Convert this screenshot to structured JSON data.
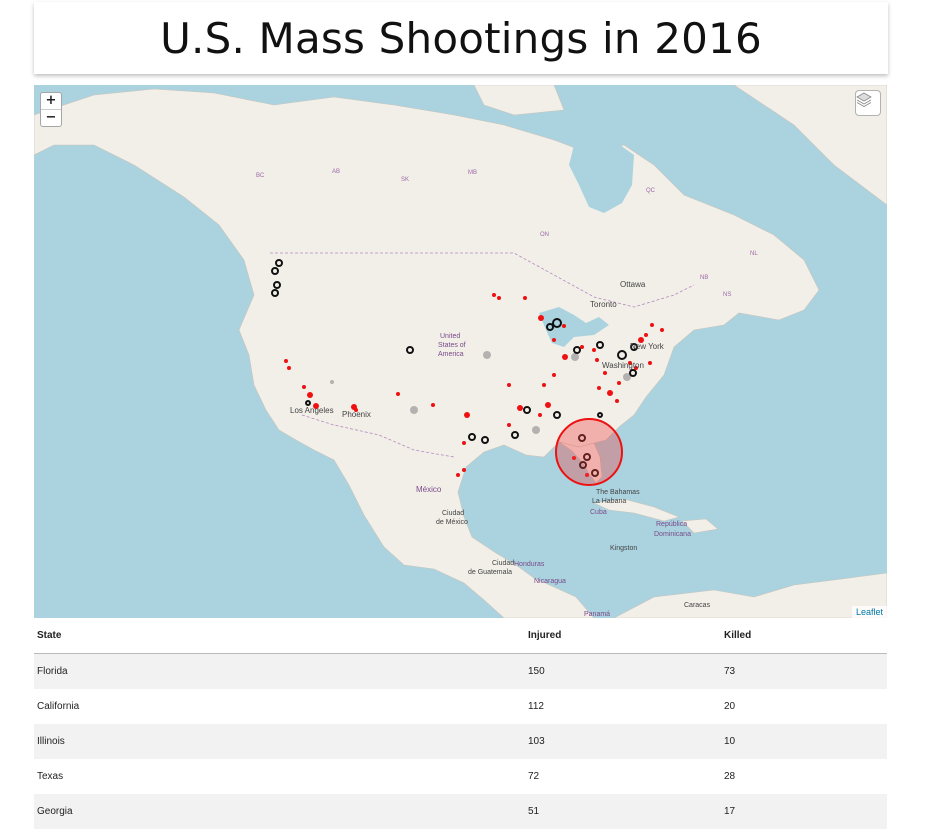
{
  "title": "U.S. Mass Shootings in 2016",
  "map": {
    "zoom_in": "+",
    "zoom_out": "−",
    "layers_icon": "layers-icon",
    "attribution": "Leaflet",
    "colors": {
      "water": "#aad3df",
      "land": "#f2efe9",
      "marker_red": "#ee1111",
      "marker_black": "#111111",
      "marker_gray": "#999999"
    },
    "labels": {
      "usa": [
        "United",
        "States of",
        "America"
      ],
      "ottawa": "Ottawa",
      "toronto": "Toronto",
      "new_york": "New York",
      "washington": "Washington",
      "los_angeles": "Los Angeles",
      "phoenix": "Phoenix",
      "mexico": "México",
      "ciudad_mexico": [
        "Ciudad",
        "de México"
      ],
      "bahamas": "The Bahamas",
      "la_habana": "La Habana",
      "cuba": "Cuba",
      "republica": [
        "República",
        "Dominicana"
      ],
      "kingston": "Kingston",
      "honduras": "Honduras",
      "guatemala": [
        "Ciudad",
        "de Guatemala"
      ],
      "nicaragua": "Nicaragua",
      "panama": "Panamá",
      "caracas": "Caracas",
      "on": "ON",
      "qc": "QC",
      "nl": "NL",
      "bc": "BC",
      "ab": "AB",
      "sk": "SK",
      "mb": "MB",
      "nb": "NB",
      "ns": "NS"
    }
  },
  "table": {
    "headers": [
      "State",
      "Injured",
      "Killed"
    ],
    "rows": [
      {
        "state": "Florida",
        "injured": "150",
        "killed": "73"
      },
      {
        "state": "California",
        "injured": "112",
        "killed": "20"
      },
      {
        "state": "Illinois",
        "injured": "103",
        "killed": "10"
      },
      {
        "state": "Texas",
        "injured": "72",
        "killed": "28"
      },
      {
        "state": "Georgia",
        "injured": "51",
        "killed": "17"
      }
    ]
  }
}
